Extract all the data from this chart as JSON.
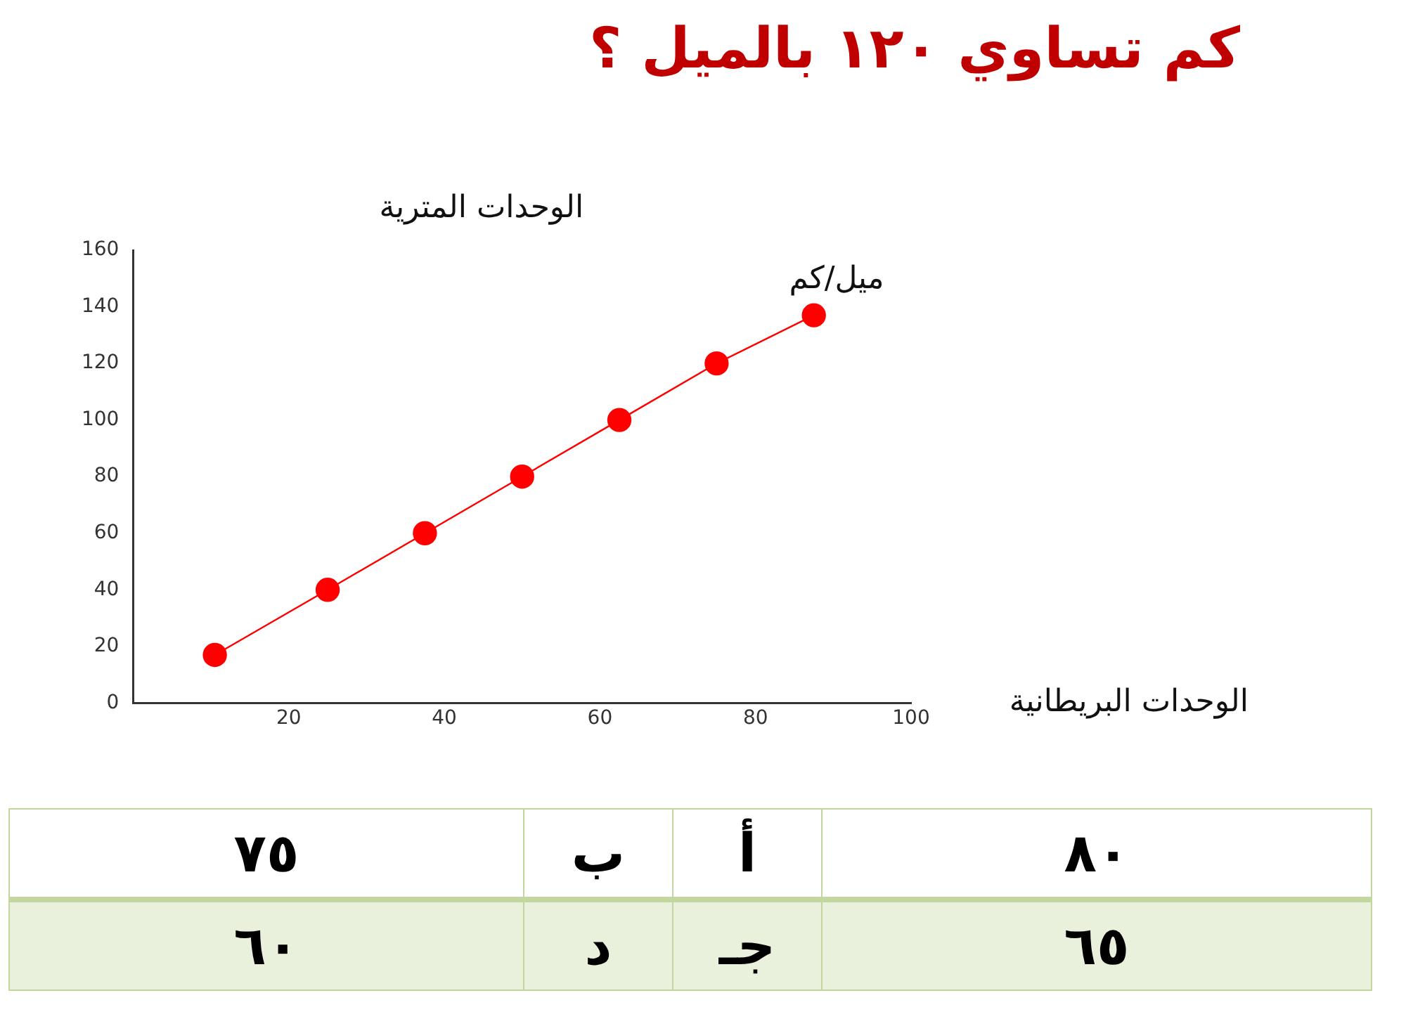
{
  "chart_data": {
    "type": "line",
    "title": "كم تساوي ١٢٠ بالميل ؟",
    "xlabel": "الوحدات البريطانية",
    "ylabel": "الوحدات المترية",
    "series": [
      {
        "name": "ميل/كم",
        "color": "#ff0000",
        "x": [
          10.5,
          25,
          37.5,
          50,
          62.5,
          75,
          87.5
        ],
        "values": [
          17,
          40,
          60,
          80,
          100,
          120,
          137
        ]
      }
    ],
    "xlim": [
      0,
      100
    ],
    "xticks": [
      20,
      40,
      60,
      80,
      100
    ],
    "ylim": [
      0,
      160
    ],
    "yticks": [
      0,
      20,
      40,
      60,
      80,
      100,
      120,
      140,
      160
    ],
    "grid": false,
    "legend": false,
    "marker": "circle",
    "line_style": "solid",
    "annotations": [
      "٨٠",
      "أ",
      "ب",
      "٧٥",
      "٦٥",
      "جـ",
      "د",
      "٦٠"
    ]
  }
}
